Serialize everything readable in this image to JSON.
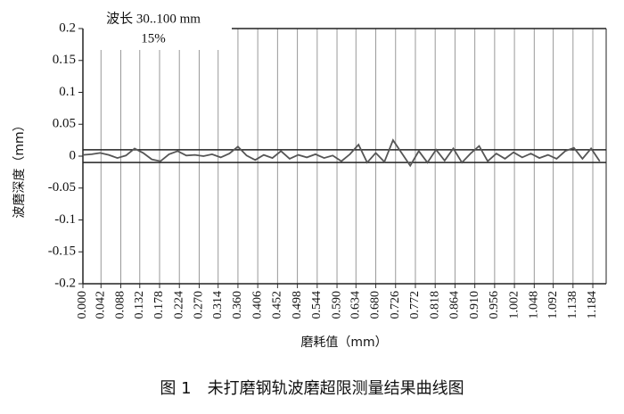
{
  "chart_data": {
    "type": "line",
    "annotations": [
      "波长 30..100 mm",
      "15%"
    ],
    "ylabel": "波磨深度（mm）",
    "xlabel": "磨耗值（mm）",
    "caption": "图 1　未打磨钢轨波磨超限测量结果曲线图",
    "xlim": [
      0,
      1.215
    ],
    "xticks": [
      {
        "value": 0,
        "label": "0.000"
      },
      0.042,
      0.088,
      0.132,
      0.178,
      0.224,
      {
        "value": 0.27,
        "label": "0.270"
      },
      0.314,
      {
        "value": 0.36,
        "label": "0.360"
      },
      0.406,
      0.452,
      0.498,
      0.544,
      {
        "value": 0.59,
        "label": "0.590"
      },
      0.634,
      {
        "value": 0.68,
        "label": "0.680"
      },
      0.726,
      0.772,
      0.818,
      0.864,
      {
        "value": 0.91,
        "label": "0.910"
      },
      0.956,
      1.002,
      1.048,
      1.092,
      1.138,
      1.184
    ],
    "ylim": [
      -0.2,
      0.2
    ],
    "yticks": [
      0.2,
      0.15,
      0.1,
      0.05,
      0,
      -0.05,
      -0.1,
      -0.15,
      -0.2
    ],
    "thresholds": [
      0.01,
      -0.01
    ],
    "grid": true,
    "series": [
      {
        "color": "#555555",
        "x": [
          0,
          0.02,
          0.04,
          0.06,
          0.08,
          0.1,
          0.12,
          0.14,
          0.16,
          0.18,
          0.2,
          0.22,
          0.24,
          0.26,
          0.28,
          0.3,
          0.32,
          0.34,
          0.36,
          0.38,
          0.4,
          0.42,
          0.44,
          0.46,
          0.48,
          0.5,
          0.52,
          0.54,
          0.56,
          0.58,
          0.6,
          0.62,
          0.64,
          0.66,
          0.68,
          0.7,
          0.72,
          0.74,
          0.76,
          0.78,
          0.8,
          0.82,
          0.84,
          0.86,
          0.88,
          0.9,
          0.92,
          0.94,
          0.96,
          0.98,
          1.0,
          1.02,
          1.04,
          1.06,
          1.08,
          1.1,
          1.12,
          1.14,
          1.16,
          1.18,
          1.2
        ],
        "values": [
          0.002,
          0.003,
          0.005,
          0.002,
          -0.003,
          0.001,
          0.012,
          0.005,
          -0.005,
          -0.008,
          0.003,
          0.008,
          0.001,
          0.002,
          0,
          0.003,
          -0.002,
          0.004,
          0.015,
          0.001,
          -0.006,
          0.002,
          -0.003,
          0.008,
          -0.004,
          0.002,
          -0.002,
          0.003,
          -0.003,
          0.001,
          -0.008,
          0.003,
          0.018,
          -0.01,
          0.005,
          -0.009,
          0.025,
          0.005,
          -0.015,
          0.008,
          -0.01,
          0.01,
          -0.007,
          0.012,
          -0.01,
          0.004,
          0.016,
          -0.008,
          0.004,
          -0.004,
          0.006,
          -0.002,
          0.004,
          -0.003,
          0.002,
          -0.004,
          0.008,
          0.013,
          -0.004,
          0.012,
          -0.008
        ]
      }
    ]
  }
}
